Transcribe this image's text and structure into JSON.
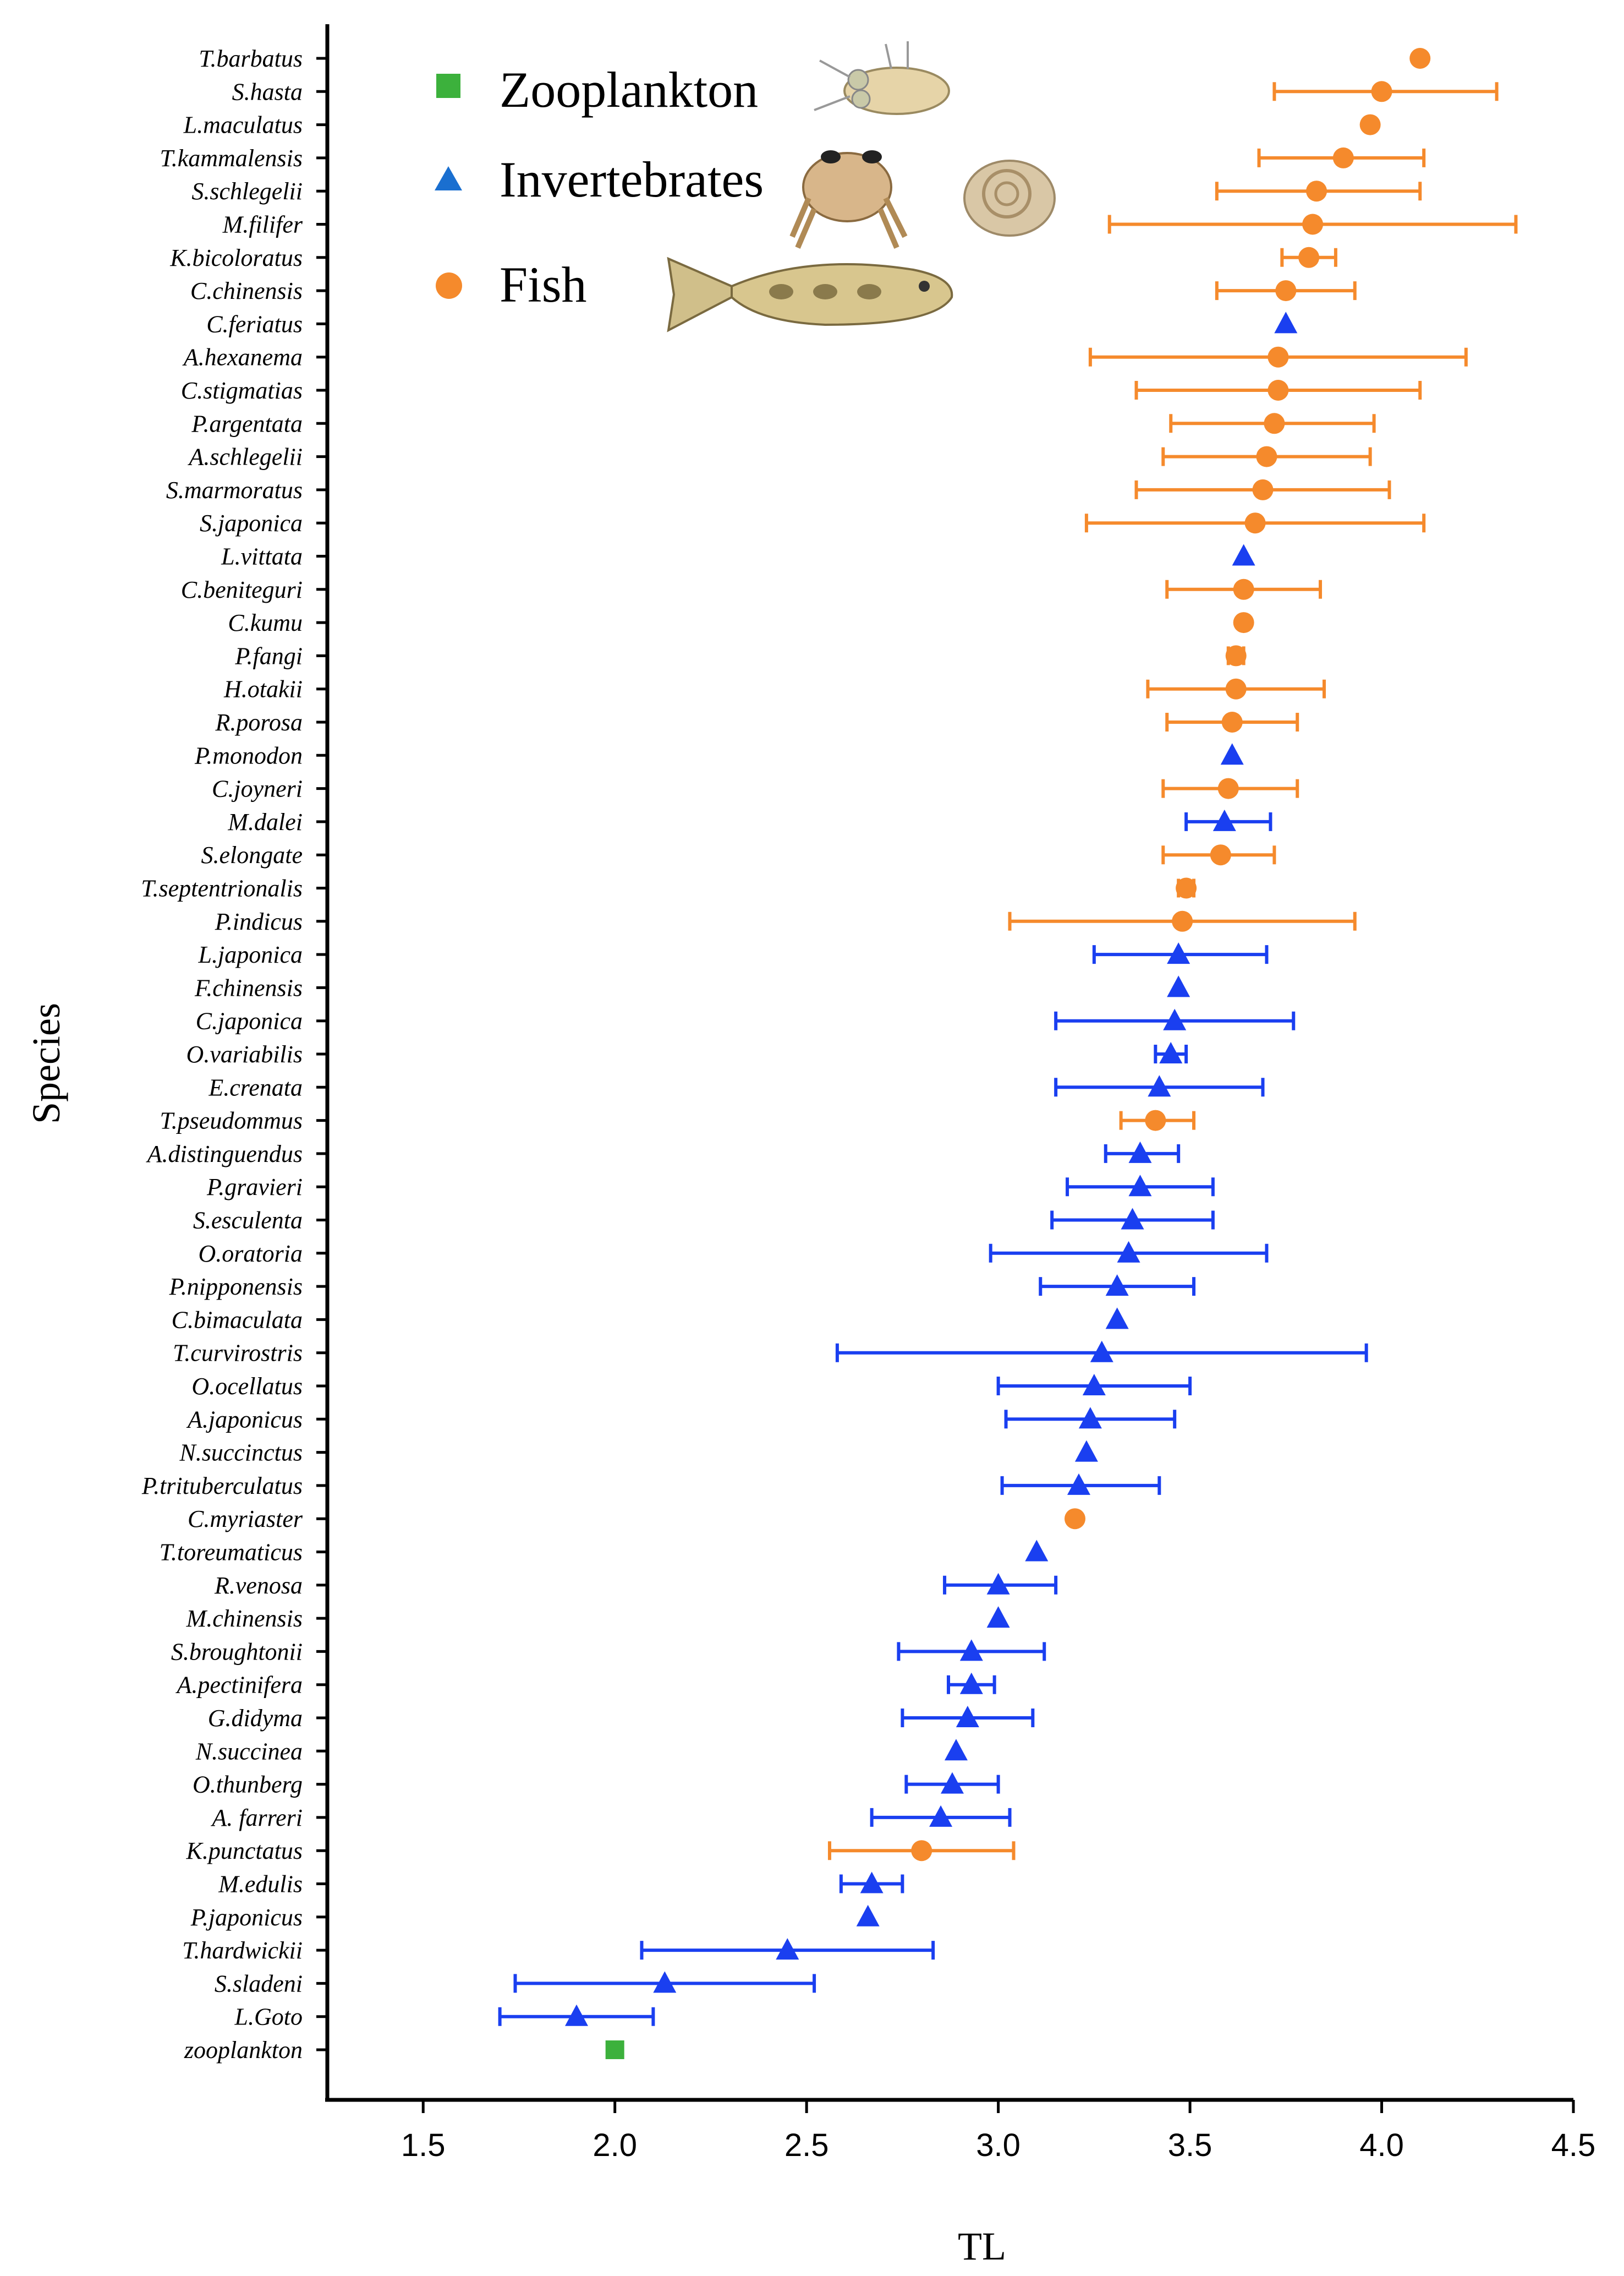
{
  "chart_data": {
    "type": "scatter",
    "xlabel": "TL",
    "ylabel": "Species",
    "xlim": [
      1.25,
      4.5
    ],
    "xticks": [
      "1.5",
      "2.0",
      "2.5",
      "3.0",
      "3.5",
      "4.0",
      "4.5"
    ],
    "xtick_values": [
      1.5,
      2.0,
      2.5,
      3.0,
      3.5,
      4.0,
      4.5
    ],
    "grid": false,
    "legend_position": "top-left",
    "series": [
      {
        "name": "Zooplankton",
        "key": "zoo",
        "marker": "square",
        "color": "#3cb13c"
      },
      {
        "name": "Invertebrates",
        "key": "inv",
        "marker": "triangle",
        "color": "#1a3ff0"
      },
      {
        "name": "Fish",
        "key": "fish",
        "marker": "circle",
        "color": "#f58a2c"
      }
    ],
    "points": [
      {
        "species": "T.barbatus",
        "group": "fish",
        "tl": 4.1,
        "lo": null,
        "hi": null
      },
      {
        "species": "S.hasta",
        "group": "fish",
        "tl": 4.0,
        "lo": 3.72,
        "hi": 4.3
      },
      {
        "species": "L.maculatus",
        "group": "fish",
        "tl": 3.97,
        "lo": null,
        "hi": null
      },
      {
        "species": "T.kammalensis",
        "group": "fish",
        "tl": 3.9,
        "lo": 3.68,
        "hi": 4.11
      },
      {
        "species": "S.schlegelii",
        "group": "fish",
        "tl": 3.83,
        "lo": 3.57,
        "hi": 4.1
      },
      {
        "species": "M.filifer",
        "group": "fish",
        "tl": 3.82,
        "lo": 3.29,
        "hi": 4.35
      },
      {
        "species": "K.bicoloratus",
        "group": "fish",
        "tl": 3.81,
        "lo": 3.74,
        "hi": 3.88
      },
      {
        "species": "C.chinensis",
        "group": "fish",
        "tl": 3.75,
        "lo": 3.57,
        "hi": 3.93
      },
      {
        "species": "C.feriatus",
        "group": "inv",
        "tl": 3.75,
        "lo": null,
        "hi": null
      },
      {
        "species": "A.hexanema",
        "group": "fish",
        "tl": 3.73,
        "lo": 3.24,
        "hi": 4.22
      },
      {
        "species": "C.stigmatias",
        "group": "fish",
        "tl": 3.73,
        "lo": 3.36,
        "hi": 4.1
      },
      {
        "species": "P.argentata",
        "group": "fish",
        "tl": 3.72,
        "lo": 3.45,
        "hi": 3.98
      },
      {
        "species": "A.schlegelii",
        "group": "fish",
        "tl": 3.7,
        "lo": 3.43,
        "hi": 3.97
      },
      {
        "species": "S.marmoratus",
        "group": "fish",
        "tl": 3.69,
        "lo": 3.36,
        "hi": 4.02
      },
      {
        "species": "S.japonica",
        "group": "fish",
        "tl": 3.67,
        "lo": 3.23,
        "hi": 4.11
      },
      {
        "species": "L.vittata",
        "group": "inv",
        "tl": 3.64,
        "lo": null,
        "hi": null
      },
      {
        "species": "C.beniteguri",
        "group": "fish",
        "tl": 3.64,
        "lo": 3.44,
        "hi": 3.84
      },
      {
        "species": "C.kumu",
        "group": "fish",
        "tl": 3.64,
        "lo": null,
        "hi": null
      },
      {
        "species": "P.fangi",
        "group": "fish",
        "tl": 3.62,
        "lo": 3.6,
        "hi": 3.64
      },
      {
        "species": "H.otakii",
        "group": "fish",
        "tl": 3.62,
        "lo": 3.39,
        "hi": 3.85
      },
      {
        "species": "R.porosa",
        "group": "fish",
        "tl": 3.61,
        "lo": 3.44,
        "hi": 3.78
      },
      {
        "species": "P.monodon",
        "group": "inv",
        "tl": 3.61,
        "lo": null,
        "hi": null
      },
      {
        "species": "C.joyneri",
        "group": "fish",
        "tl": 3.6,
        "lo": 3.43,
        "hi": 3.78
      },
      {
        "species": "M.dalei",
        "group": "inv",
        "tl": 3.59,
        "lo": 3.49,
        "hi": 3.71
      },
      {
        "species": "S.elongate",
        "group": "fish",
        "tl": 3.58,
        "lo": 3.43,
        "hi": 3.72
      },
      {
        "species": "T.septentrionalis",
        "group": "fish",
        "tl": 3.49,
        "lo": 3.47,
        "hi": 3.51
      },
      {
        "species": "P.indicus",
        "group": "fish",
        "tl": 3.48,
        "lo": 3.03,
        "hi": 3.93
      },
      {
        "species": "L.japonica",
        "group": "inv",
        "tl": 3.47,
        "lo": 3.25,
        "hi": 3.7
      },
      {
        "species": "F.chinensis",
        "group": "inv",
        "tl": 3.47,
        "lo": null,
        "hi": null
      },
      {
        "species": "C.japonica",
        "group": "inv",
        "tl": 3.46,
        "lo": 3.15,
        "hi": 3.77
      },
      {
        "species": "O.variabilis",
        "group": "inv",
        "tl": 3.45,
        "lo": 3.41,
        "hi": 3.49
      },
      {
        "species": "E.crenata",
        "group": "inv",
        "tl": 3.42,
        "lo": 3.15,
        "hi": 3.69
      },
      {
        "species": "T.pseudommus",
        "group": "fish",
        "tl": 3.41,
        "lo": 3.32,
        "hi": 3.51
      },
      {
        "species": "A.distinguendus",
        "group": "inv",
        "tl": 3.37,
        "lo": 3.28,
        "hi": 3.47
      },
      {
        "species": "P.gravieri",
        "group": "inv",
        "tl": 3.37,
        "lo": 3.18,
        "hi": 3.56
      },
      {
        "species": "S.esculenta",
        "group": "inv",
        "tl": 3.35,
        "lo": 3.14,
        "hi": 3.56
      },
      {
        "species": "O.oratoria",
        "group": "inv",
        "tl": 3.34,
        "lo": 2.98,
        "hi": 3.7
      },
      {
        "species": "P.nipponensis",
        "group": "inv",
        "tl": 3.31,
        "lo": 3.11,
        "hi": 3.51
      },
      {
        "species": "C.bimaculata",
        "group": "inv",
        "tl": 3.31,
        "lo": null,
        "hi": null
      },
      {
        "species": "T.curvirostris",
        "group": "inv",
        "tl": 3.27,
        "lo": 2.58,
        "hi": 3.96
      },
      {
        "species": "O.ocellatus",
        "group": "inv",
        "tl": 3.25,
        "lo": 3.0,
        "hi": 3.5
      },
      {
        "species": "A.japonicus",
        "group": "inv",
        "tl": 3.24,
        "lo": 3.02,
        "hi": 3.46
      },
      {
        "species": "N.succinctus",
        "group": "inv",
        "tl": 3.23,
        "lo": null,
        "hi": null
      },
      {
        "species": "P.trituberculatus",
        "group": "inv",
        "tl": 3.21,
        "lo": 3.01,
        "hi": 3.42
      },
      {
        "species": "C.myriaster",
        "group": "fish",
        "tl": 3.2,
        "lo": null,
        "hi": null
      },
      {
        "species": "T.toreumaticus",
        "group": "inv",
        "tl": 3.1,
        "lo": null,
        "hi": null
      },
      {
        "species": "R.venosa",
        "group": "inv",
        "tl": 3.0,
        "lo": 2.86,
        "hi": 3.15
      },
      {
        "species": "M.chinensis",
        "group": "inv",
        "tl": 3.0,
        "lo": null,
        "hi": null
      },
      {
        "species": "S.broughtonii",
        "group": "inv",
        "tl": 2.93,
        "lo": 2.74,
        "hi": 3.12
      },
      {
        "species": "A.pectinifera",
        "group": "inv",
        "tl": 2.93,
        "lo": 2.87,
        "hi": 2.99
      },
      {
        "species": "G.didyma",
        "group": "inv",
        "tl": 2.92,
        "lo": 2.75,
        "hi": 3.09
      },
      {
        "species": "N.succinea",
        "group": "inv",
        "tl": 2.89,
        "lo": null,
        "hi": null
      },
      {
        "species": "O.thunberg",
        "group": "inv",
        "tl": 2.88,
        "lo": 2.76,
        "hi": 3.0
      },
      {
        "species": "A. farreri",
        "group": "inv",
        "tl": 2.85,
        "lo": 2.67,
        "hi": 3.03
      },
      {
        "species": "K.punctatus",
        "group": "fish",
        "tl": 2.8,
        "lo": 2.56,
        "hi": 3.04
      },
      {
        "species": "M.edulis",
        "group": "inv",
        "tl": 2.67,
        "lo": 2.59,
        "hi": 2.75
      },
      {
        "species": "P.japonicus",
        "group": "inv",
        "tl": 2.66,
        "lo": null,
        "hi": null
      },
      {
        "species": "T.hardwickii",
        "group": "inv",
        "tl": 2.45,
        "lo": 2.07,
        "hi": 2.83
      },
      {
        "species": "S.sladeni",
        "group": "inv",
        "tl": 2.13,
        "lo": 1.74,
        "hi": 2.52
      },
      {
        "species": "L.Goto",
        "group": "inv",
        "tl": 1.9,
        "lo": 1.7,
        "hi": 2.1
      },
      {
        "species": "zooplankton",
        "group": "zoo",
        "tl": 2.0,
        "lo": null,
        "hi": null
      }
    ]
  }
}
